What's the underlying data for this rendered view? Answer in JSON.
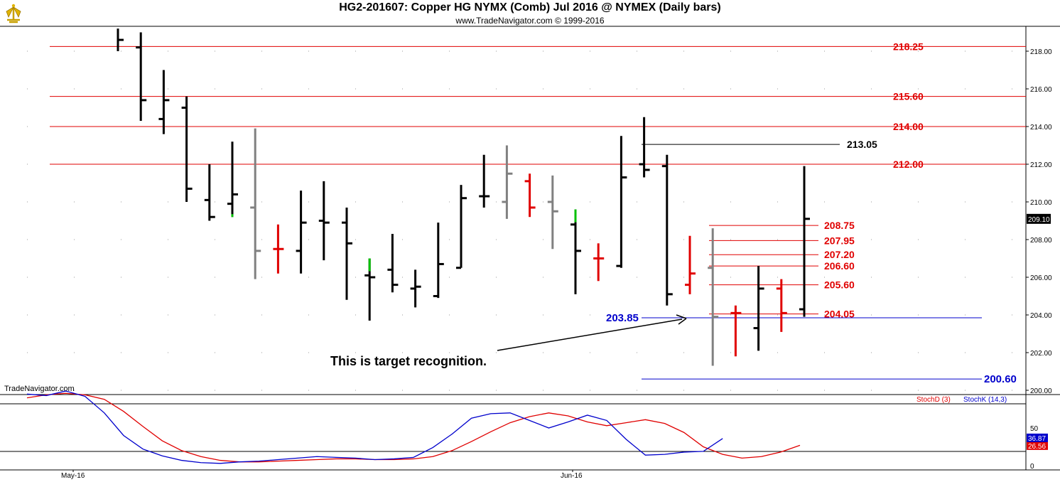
{
  "header": {
    "title": "HG2-201607:  Copper HG NYMX (Comb) Jul 2016 @ NYMEX  (Daily bars)",
    "subtitle": "www.TradeNavigator.com © 1999-2016",
    "watermark": "TradeNavigator.com",
    "logo_icon": "trade-navigator-logo-icon"
  },
  "chart_data": [
    {
      "type": "ohlc",
      "ylim": [
        199.2,
        219.5
      ],
      "y_ticks": [
        "218.00",
        "216.00",
        "214.00",
        "212.00",
        "210.00",
        "208.00",
        "206.00",
        "204.00",
        "202.00",
        "200.00"
      ],
      "x_ticks": [
        "May-16",
        "Jun-16"
      ],
      "last_price": "209.10",
      "colors": {
        "black": "#000000",
        "gray": "#808080",
        "red": "#e00000",
        "green": "#00c000"
      },
      "bars": [
        {
          "h": 219.2,
          "l": 218.0,
          "o": null,
          "c": 218.6,
          "color": "black"
        },
        {
          "h": 219.0,
          "l": 214.3,
          "o": 218.2,
          "c": 215.4,
          "color": "black"
        },
        {
          "h": 217.0,
          "l": 213.6,
          "o": 214.4,
          "c": 215.4,
          "color": "black"
        },
        {
          "h": 215.6,
          "l": 210.0,
          "o": 215.0,
          "c": 210.7,
          "color": "black"
        },
        {
          "h": 212.0,
          "l": 209.0,
          "o": 210.1,
          "c": 209.2,
          "color": "black"
        },
        {
          "h": 213.2,
          "l": 209.2,
          "o": 209.9,
          "c": 210.4,
          "color": "black",
          "lowtick": "green"
        },
        {
          "h": 213.9,
          "l": 205.9,
          "o": 209.7,
          "c": 207.4,
          "color": "gray"
        },
        {
          "h": 208.8,
          "l": 206.2,
          "o": 207.5,
          "c": 207.5,
          "color": "red"
        },
        {
          "h": 210.6,
          "l": 206.2,
          "o": 207.4,
          "c": 208.9,
          "color": "black"
        },
        {
          "h": 211.1,
          "l": 206.9,
          "o": 209.0,
          "c": 208.9,
          "color": "black"
        },
        {
          "h": 209.7,
          "l": 204.8,
          "o": 208.9,
          "c": 207.8,
          "color": "black"
        },
        {
          "h": 207.0,
          "l": 203.7,
          "o": 206.1,
          "c": 206.0,
          "color": "black",
          "hightick": "green"
        },
        {
          "h": 208.3,
          "l": 205.2,
          "o": 206.4,
          "c": 205.6,
          "color": "black"
        },
        {
          "h": 206.4,
          "l": 204.4,
          "o": 205.4,
          "c": 205.5,
          "color": "black"
        },
        {
          "h": 208.9,
          "l": 204.9,
          "o": 205.0,
          "c": 206.7,
          "color": "black"
        },
        {
          "h": 210.9,
          "l": 206.5,
          "o": 206.5,
          "c": 210.2,
          "color": "black"
        },
        {
          "h": 212.5,
          "l": 209.7,
          "o": 210.3,
          "c": 210.3,
          "color": "black"
        },
        {
          "h": 213.0,
          "l": 209.1,
          "o": 210.0,
          "c": 211.5,
          "color": "gray"
        },
        {
          "h": 211.5,
          "l": 209.2,
          "o": 211.1,
          "c": 209.7,
          "color": "red"
        },
        {
          "h": 211.4,
          "l": 207.5,
          "o": 210.0,
          "c": 209.5,
          "color": "gray"
        },
        {
          "h": 209.6,
          "l": 205.1,
          "o": 208.8,
          "c": 207.4,
          "color": "black",
          "hightick": "green"
        },
        {
          "h": 207.8,
          "l": 205.8,
          "o": 207.0,
          "c": 207.0,
          "color": "red"
        },
        {
          "h": 213.5,
          "l": 206.5,
          "o": 206.6,
          "c": 211.3,
          "color": "black"
        },
        {
          "h": 214.5,
          "l": 211.3,
          "o": 212.0,
          "c": 211.7,
          "color": "black"
        },
        {
          "h": 212.5,
          "l": 204.5,
          "o": 211.9,
          "c": 205.1,
          "color": "black"
        },
        {
          "h": 208.2,
          "l": 205.1,
          "o": 205.6,
          "c": 206.2,
          "color": "red"
        },
        {
          "h": 208.6,
          "l": 201.3,
          "o": 206.5,
          "c": 203.9,
          "color": "gray"
        },
        {
          "h": 204.5,
          "l": 201.8,
          "o": 204.1,
          "c": 204.1,
          "color": "red"
        },
        {
          "h": 206.6,
          "l": 202.1,
          "o": 203.3,
          "c": 205.4,
          "color": "black"
        },
        {
          "h": 205.9,
          "l": 203.1,
          "o": 205.4,
          "c": 204.1,
          "color": "red"
        },
        {
          "h": 211.9,
          "l": 203.9,
          "o": 204.3,
          "c": 209.1,
          "color": "black"
        }
      ],
      "levels": [
        {
          "value": 218.25,
          "label": "218.25",
          "color": "red"
        },
        {
          "value": 215.6,
          "label": "215.60",
          "color": "red"
        },
        {
          "value": 214.0,
          "label": "214.00",
          "color": "red"
        },
        {
          "value": 212.0,
          "label": "212.00",
          "color": "red"
        },
        {
          "value": 213.05,
          "label": "213.05",
          "color": "black"
        },
        {
          "value": 208.75,
          "label": "208.75",
          "color": "red"
        },
        {
          "value": 207.95,
          "label": "207.95",
          "color": "red"
        },
        {
          "value": 207.2,
          "label": "207.20",
          "color": "red"
        },
        {
          "value": 206.6,
          "label": "206.60",
          "color": "red"
        },
        {
          "value": 205.6,
          "label": "205.60",
          "color": "red"
        },
        {
          "value": 204.05,
          "label": "204.05",
          "color": "red"
        },
        {
          "value": 203.85,
          "label": "203.85",
          "color": "blue"
        },
        {
          "value": 200.6,
          "label": "200.60",
          "color": "blue"
        }
      ],
      "annotation": "This is target recognition."
    },
    {
      "type": "line",
      "ylim": [
        0,
        100
      ],
      "y_ticks": [
        "50",
        "0"
      ],
      "series": [
        {
          "name": "StochD (3)",
          "color": "#e00000",
          "last_label": "26.56",
          "values": [
            90,
            94,
            96,
            94,
            88,
            72,
            52,
            33,
            20,
            12,
            7,
            5,
            5,
            6,
            7,
            8,
            9,
            9,
            8,
            8,
            9,
            12,
            20,
            32,
            45,
            57,
            65,
            70,
            66,
            58,
            53,
            57,
            61,
            56,
            44,
            25,
            15,
            10,
            12,
            18,
            27
          ]
        },
        {
          "name": "StochK (14,3)",
          "color": "#0000cc",
          "last_label": "36.87",
          "values": [
            95,
            93,
            99,
            92,
            70,
            40,
            22,
            13,
            7,
            4,
            3,
            5,
            6,
            8,
            10,
            12,
            11,
            10,
            8,
            9,
            11,
            24,
            42,
            63,
            69,
            70,
            60,
            50,
            58,
            67,
            60,
            35,
            14,
            15,
            18,
            19,
            36
          ]
        }
      ]
    }
  ]
}
